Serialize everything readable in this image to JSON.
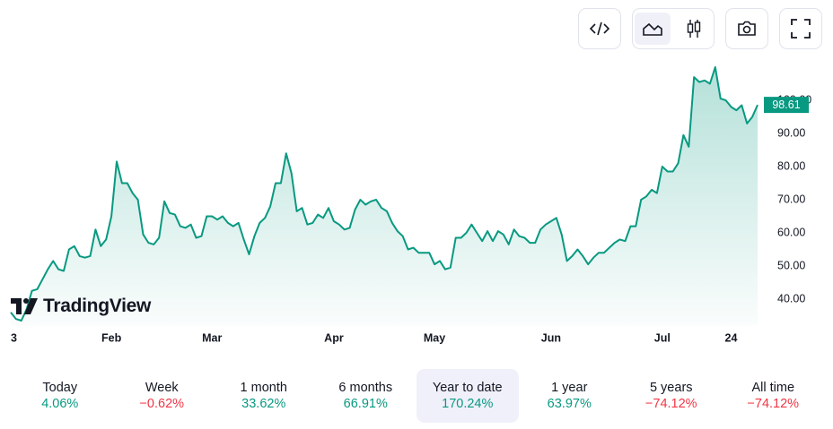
{
  "chart_data": {
    "type": "area",
    "categories": [
      "3",
      null,
      null,
      null,
      null,
      null,
      null,
      null,
      null,
      null,
      null,
      null,
      null,
      null,
      null,
      null,
      null,
      null,
      null,
      "Feb",
      null,
      null,
      null,
      null,
      null,
      null,
      null,
      null,
      null,
      null,
      null,
      null,
      null,
      null,
      null,
      null,
      null,
      null,
      "Mar",
      null,
      null,
      null,
      null,
      null,
      null,
      null,
      null,
      null,
      null,
      null,
      null,
      null,
      null,
      null,
      null,
      null,
      null,
      null,
      null,
      null,
      null,
      "Apr",
      null,
      null,
      null,
      null,
      null,
      null,
      null,
      null,
      null,
      null,
      null,
      null,
      null,
      null,
      null,
      null,
      null,
      null,
      "May",
      null,
      null,
      null,
      null,
      null,
      null,
      null,
      null,
      null,
      null,
      null,
      null,
      null,
      null,
      null,
      null,
      null,
      null,
      null,
      null,
      null,
      "Jun",
      null,
      null,
      null,
      null,
      null,
      null,
      null,
      null,
      null,
      null,
      null,
      null,
      null,
      null,
      null,
      null,
      null,
      null,
      null,
      null,
      "Jul",
      null,
      null,
      null,
      null,
      null,
      null,
      null,
      null,
      null,
      null,
      null,
      null,
      "24",
      null,
      null,
      null,
      null,
      null
    ],
    "values": [
      36,
      34,
      33.5,
      37,
      42.5,
      43,
      46,
      49,
      51.5,
      49,
      48.5,
      55,
      56,
      53,
      52.5,
      53,
      61,
      56,
      58,
      65,
      81.5,
      75,
      75,
      72,
      70,
      59.5,
      57,
      56.5,
      58.5,
      69.5,
      66,
      65.5,
      62,
      61.5,
      62.5,
      58.5,
      59,
      65,
      65,
      64,
      65,
      63,
      62,
      63,
      58,
      53.5,
      59,
      63,
      64.5,
      68,
      75,
      75,
      84,
      78,
      66.5,
      67.5,
      62.5,
      63,
      65.5,
      64.5,
      67.5,
      63.5,
      62.5,
      61,
      61.5,
      67,
      70,
      68.5,
      69.5,
      70,
      67.5,
      66.5,
      63,
      60.5,
      59,
      55,
      55.5,
      54,
      54,
      54,
      50.5,
      51.5,
      49,
      49.5,
      58.5,
      58.5,
      60,
      62.5,
      60,
      57.5,
      60.5,
      57.5,
      60.5,
      59.5,
      56.5,
      61,
      59,
      58.5,
      57,
      57,
      61,
      62.5,
      63.5,
      64.5,
      59.5,
      51.5,
      53,
      55,
      53,
      50.5,
      52.5,
      54,
      54,
      55.5,
      57,
      58,
      57.5,
      62,
      62,
      70,
      71,
      73,
      72,
      80,
      78.5,
      78.5,
      81,
      89.5,
      86,
      107,
      105.5,
      106,
      105,
      110,
      100.5,
      100,
      98,
      97,
      98.5,
      93,
      95,
      98.61
    ],
    "color": "#089981",
    "ylim": [
      32,
      112.7
    ],
    "yticks": [
      {
        "value": 40,
        "label": "40.00"
      },
      {
        "value": 50,
        "label": "50.00"
      },
      {
        "value": 60,
        "label": "60.00"
      },
      {
        "value": 70,
        "label": "70.00"
      },
      {
        "value": 80,
        "label": "80.00"
      },
      {
        "value": 90,
        "label": "90.00"
      },
      {
        "value": 100,
        "label": "100.00"
      }
    ],
    "grid": false
  },
  "watermark": "TradingView",
  "periods": [
    {
      "label": "Today",
      "change": "4.06%",
      "color": "#089981"
    },
    {
      "label": "Week",
      "change": "−0.62%",
      "color": "#f23645"
    },
    {
      "label": "1 month",
      "change": "33.62%",
      "color": "#089981"
    },
    {
      "label": "6 months",
      "change": "66.91%",
      "color": "#089981"
    },
    {
      "label": "Year to date",
      "change": "170.24%",
      "color": "#089981"
    },
    {
      "label": "1 year",
      "change": "63.97%",
      "color": "#089981"
    },
    {
      "label": "5 years",
      "change": "−74.12%",
      "color": "#f23645"
    },
    {
      "label": "All time",
      "change": "−74.12%",
      "color": "#f23645"
    }
  ]
}
